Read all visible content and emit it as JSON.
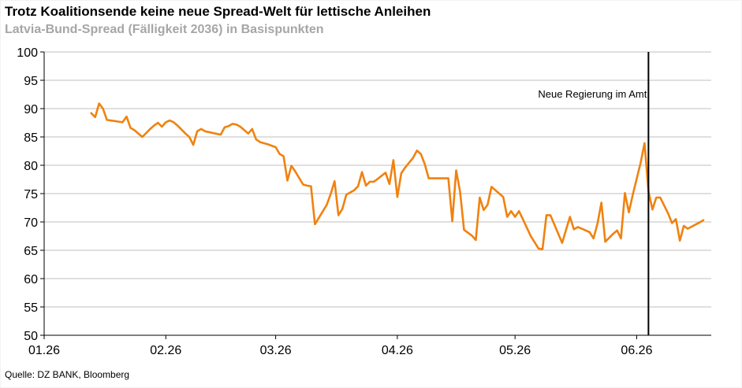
{
  "header": {
    "title": "Trotz Koalitionsende keine neue Spread-Welt für lettische Anleihen",
    "subtitle": "Latvia-Bund-Spread (Fälligkeit 2036) in Basispunkten"
  },
  "footer": {
    "source": "Quelle: DZ BANK, Bloomberg"
  },
  "chart_data": {
    "type": "line",
    "title": "Trotz Koalitionsende keine neue Spread-Welt für lettische Anleihen",
    "subtitle": "Latvia-Bund-Spread (Fälligkeit 2036) in Basispunkten",
    "xlabel": "",
    "ylabel": "",
    "ylim": [
      50,
      100
    ],
    "y_ticks": [
      50,
      55,
      60,
      65,
      70,
      75,
      80,
      85,
      90,
      95,
      100
    ],
    "x_range": [
      "2026-01-01",
      "2026-06-20"
    ],
    "x_ticks": [
      {
        "date": "2026-01-01",
        "label": "01.26"
      },
      {
        "date": "2026-02-01",
        "label": "02.26"
      },
      {
        "date": "2026-03-01",
        "label": "03.26"
      },
      {
        "date": "2026-04-01",
        "label": "04.26"
      },
      {
        "date": "2026-05-01",
        "label": "05.26"
      },
      {
        "date": "2026-06-01",
        "label": "06.26"
      }
    ],
    "grid": true,
    "line_color": "#f0820f",
    "series": [
      {
        "points": [
          [
            "2026-01-13",
            89.2
          ],
          [
            "2026-01-14",
            88.5
          ],
          [
            "2026-01-15",
            90.9
          ],
          [
            "2026-01-16",
            90.0
          ],
          [
            "2026-01-17",
            88.0
          ],
          [
            "2026-01-19",
            87.8
          ],
          [
            "2026-01-20",
            87.7
          ],
          [
            "2026-01-21",
            87.6
          ],
          [
            "2026-01-22",
            88.6
          ],
          [
            "2026-01-23",
            86.6
          ],
          [
            "2026-01-24",
            86.2
          ],
          [
            "2026-01-26",
            85.0
          ],
          [
            "2026-01-27",
            85.7
          ],
          [
            "2026-01-28",
            86.4
          ],
          [
            "2026-01-29",
            87.0
          ],
          [
            "2026-01-30",
            87.5
          ],
          [
            "2026-01-31",
            86.8
          ],
          [
            "2026-02-01",
            87.6
          ],
          [
            "2026-02-02",
            87.9
          ],
          [
            "2026-02-03",
            87.6
          ],
          [
            "2026-02-04",
            87.0
          ],
          [
            "2026-02-06",
            85.6
          ],
          [
            "2026-02-07",
            85.0
          ],
          [
            "2026-02-08",
            83.6
          ],
          [
            "2026-02-09",
            86.0
          ],
          [
            "2026-02-10",
            86.4
          ],
          [
            "2026-02-11",
            86.0
          ],
          [
            "2026-02-15",
            85.4
          ],
          [
            "2026-02-16",
            86.7
          ],
          [
            "2026-02-17",
            86.9
          ],
          [
            "2026-02-18",
            87.3
          ],
          [
            "2026-02-19",
            87.2
          ],
          [
            "2026-02-20",
            86.8
          ],
          [
            "2026-02-22",
            85.6
          ],
          [
            "2026-02-23",
            86.4
          ],
          [
            "2026-02-24",
            84.6
          ],
          [
            "2026-02-25",
            84.1
          ],
          [
            "2026-02-27",
            83.7
          ],
          [
            "2026-03-01",
            83.2
          ],
          [
            "2026-03-02",
            82.0
          ],
          [
            "2026-03-03",
            81.6
          ],
          [
            "2026-03-04",
            77.3
          ],
          [
            "2026-03-05",
            79.9
          ],
          [
            "2026-03-06",
            78.9
          ],
          [
            "2026-03-08",
            76.6
          ],
          [
            "2026-03-09",
            76.4
          ],
          [
            "2026-03-10",
            76.3
          ],
          [
            "2026-03-11",
            69.6
          ],
          [
            "2026-03-14",
            73.0
          ],
          [
            "2026-03-15",
            74.9
          ],
          [
            "2026-03-16",
            77.2
          ],
          [
            "2026-03-17",
            71.2
          ],
          [
            "2026-03-18",
            72.3
          ],
          [
            "2026-03-19",
            74.8
          ],
          [
            "2026-03-21",
            75.6
          ],
          [
            "2026-03-22",
            76.3
          ],
          [
            "2026-03-23",
            78.8
          ],
          [
            "2026-03-24",
            76.4
          ],
          [
            "2026-03-25",
            77.1
          ],
          [
            "2026-03-26",
            77.1
          ],
          [
            "2026-03-27",
            77.6
          ],
          [
            "2026-03-29",
            78.7
          ],
          [
            "2026-03-30",
            76.7
          ],
          [
            "2026-03-31",
            80.9
          ],
          [
            "2026-04-01",
            74.4
          ],
          [
            "2026-04-02",
            78.6
          ],
          [
            "2026-04-03",
            79.6
          ],
          [
            "2026-04-05",
            81.3
          ],
          [
            "2026-04-06",
            82.6
          ],
          [
            "2026-04-07",
            82.0
          ],
          [
            "2026-04-08",
            80.2
          ],
          [
            "2026-04-09",
            77.7
          ],
          [
            "2026-04-13",
            77.7
          ],
          [
            "2026-04-14",
            77.7
          ],
          [
            "2026-04-15",
            70.1
          ],
          [
            "2026-04-16",
            79.1
          ],
          [
            "2026-04-17",
            75.3
          ],
          [
            "2026-04-18",
            68.6
          ],
          [
            "2026-04-20",
            67.6
          ],
          [
            "2026-04-21",
            66.8
          ],
          [
            "2026-04-22",
            74.3
          ],
          [
            "2026-04-23",
            72.1
          ],
          [
            "2026-04-24",
            73.0
          ],
          [
            "2026-04-25",
            76.2
          ],
          [
            "2026-04-26",
            75.6
          ],
          [
            "2026-04-28",
            74.4
          ],
          [
            "2026-04-29",
            70.9
          ],
          [
            "2026-04-30",
            71.9
          ],
          [
            "2026-05-01",
            70.9
          ],
          [
            "2026-05-02",
            71.9
          ],
          [
            "2026-05-03",
            70.5
          ],
          [
            "2026-05-05",
            67.5
          ],
          [
            "2026-05-06",
            66.4
          ],
          [
            "2026-05-07",
            65.3
          ],
          [
            "2026-05-08",
            65.2
          ],
          [
            "2026-05-09",
            71.2
          ],
          [
            "2026-05-10",
            71.2
          ],
          [
            "2026-05-13",
            66.3
          ],
          [
            "2026-05-15",
            70.9
          ],
          [
            "2026-05-16",
            68.7
          ],
          [
            "2026-05-17",
            69.1
          ],
          [
            "2026-05-18",
            68.8
          ],
          [
            "2026-05-20",
            68.2
          ],
          [
            "2026-05-21",
            67.1
          ],
          [
            "2026-05-22",
            69.7
          ],
          [
            "2026-05-23",
            73.4
          ],
          [
            "2026-05-24",
            66.5
          ],
          [
            "2026-05-26",
            67.9
          ],
          [
            "2026-05-27",
            68.5
          ],
          [
            "2026-05-28",
            67.1
          ],
          [
            "2026-05-29",
            75.1
          ],
          [
            "2026-05-30",
            71.7
          ],
          [
            "2026-05-31",
            74.8
          ],
          [
            "2026-06-02",
            80.4
          ],
          [
            "2026-06-03",
            83.9
          ],
          [
            "2026-06-04",
            75.4
          ],
          [
            "2026-06-05",
            72.2
          ],
          [
            "2026-06-06",
            74.3
          ],
          [
            "2026-06-07",
            74.3
          ],
          [
            "2026-06-09",
            71.5
          ],
          [
            "2026-06-10",
            69.8
          ],
          [
            "2026-06-11",
            70.5
          ],
          [
            "2026-06-12",
            66.7
          ],
          [
            "2026-06-13",
            69.3
          ],
          [
            "2026-06-14",
            68.8
          ],
          [
            "2026-06-17",
            69.9
          ],
          [
            "2026-06-18",
            70.3
          ]
        ]
      }
    ],
    "annotations": [
      {
        "text": "Neue Regierung im Amt",
        "date": "2026-06-04"
      }
    ]
  }
}
